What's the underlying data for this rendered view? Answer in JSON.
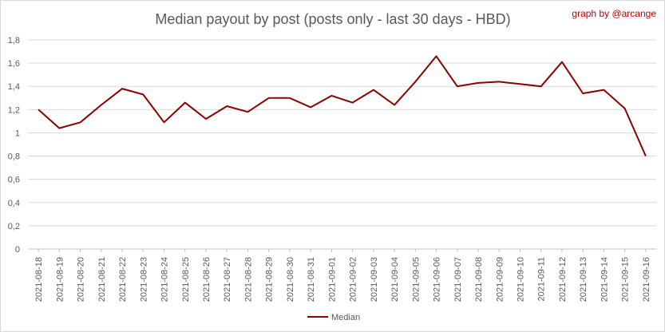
{
  "chart_data": {
    "type": "line",
    "title": "Median payout by post (posts only - last 30 days - HBD)",
    "credit": "graph by @arcange",
    "xlabel": "",
    "ylabel": "",
    "ylim": [
      0,
      1.8
    ],
    "yticks": [
      "0",
      "0,2",
      "0,4",
      "0,6",
      "0,8",
      "1",
      "1,2",
      "1,4",
      "1,6",
      "1,8"
    ],
    "grid": true,
    "legend_position": "bottom",
    "line_color": "#8b0000",
    "x": [
      "2021-08-18",
      "2021-08-19",
      "2021-08-20",
      "2021-08-21",
      "2021-08-22",
      "2021-08-23",
      "2021-08-24",
      "2021-08-25",
      "2021-08-26",
      "2021-08-27",
      "2021-08-28",
      "2021-08-29",
      "2021-08-30",
      "2021-08-31",
      "2021-09-01",
      "2021-09-02",
      "2021-09-03",
      "2021-09-04",
      "2021-09-05",
      "2021-09-06",
      "2021-09-07",
      "2021-09-08",
      "2021-09-09",
      "2021-09-10",
      "2021-09-11",
      "2021-09-12",
      "2021-09-13",
      "2021-09-14",
      "2021-09-15",
      "2021-09-16"
    ],
    "series": [
      {
        "name": "Median",
        "values": [
          1.2,
          1.04,
          1.09,
          1.24,
          1.38,
          1.33,
          1.09,
          1.26,
          1.12,
          1.23,
          1.18,
          1.3,
          1.3,
          1.22,
          1.32,
          1.26,
          1.37,
          1.24,
          1.44,
          1.66,
          1.4,
          1.43,
          1.44,
          1.42,
          1.4,
          1.61,
          1.34,
          1.37,
          1.21,
          0.8
        ]
      }
    ]
  }
}
